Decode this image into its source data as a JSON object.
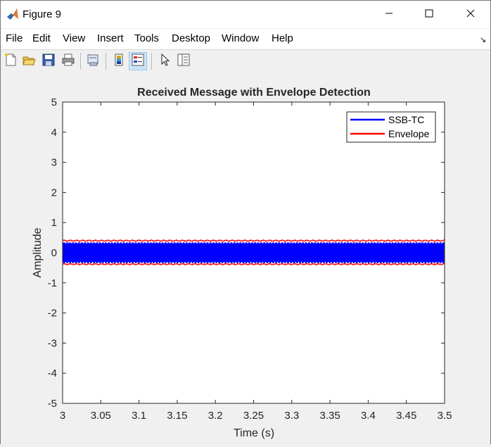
{
  "window": {
    "title": "Figure 9",
    "minimize_icon": "minimize-icon",
    "maximize_icon": "maximize-icon",
    "close_icon": "close-icon"
  },
  "menu": [
    "File",
    "Edit",
    "View",
    "Insert",
    "Tools",
    "Desktop",
    "Window",
    "Help"
  ],
  "toolbar": [
    "new-figure-icon",
    "open-file-icon",
    "save-icon",
    "print-icon",
    "link-plot-icon",
    "insert-colorbar-icon",
    "insert-legend-icon",
    "edit-plot-icon",
    "property-inspector-icon"
  ],
  "chart_data": {
    "type": "line",
    "title": "Received Message with Envelope Detection",
    "xlabel": "Time (s)",
    "ylabel": "Amplitude",
    "xlim": [
      3,
      3.5
    ],
    "ylim": [
      -5,
      5
    ],
    "xticks": [
      "3",
      "3.05",
      "3.1",
      "3.15",
      "3.2",
      "3.25",
      "3.3",
      "3.35",
      "3.4",
      "3.45",
      "3.5"
    ],
    "yticks": [
      "5",
      "4",
      "3",
      "2",
      "1",
      "0",
      "-1",
      "-2",
      "-3",
      "-4",
      "-5"
    ],
    "legend_position": "top-right",
    "series": [
      {
        "name": "SSB-TC",
        "color": "#0000ff",
        "band": [
          -0.35,
          0.35
        ]
      },
      {
        "name": "Envelope",
        "color": "#ff0000",
        "band": [
          -0.38,
          0.4
        ]
      }
    ]
  }
}
